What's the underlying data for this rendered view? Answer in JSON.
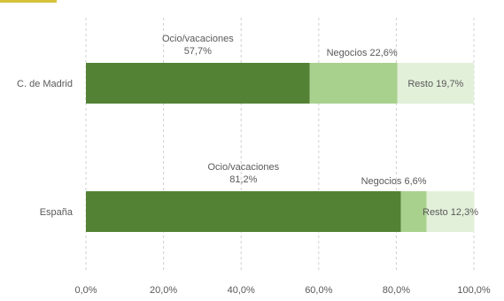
{
  "chart_data": {
    "type": "bar",
    "orientation": "horizontal",
    "stacked": true,
    "categories": [
      "C. de Madrid",
      "España"
    ],
    "series": [
      {
        "name": "Ocio/vacaciones",
        "values": [
          57.7,
          81.2
        ],
        "color": "#548235",
        "labels": [
          [
            "Ocio/vacaciones",
            "57,7%"
          ],
          [
            "Ocio/vacaciones",
            "81,2%"
          ]
        ]
      },
      {
        "name": "Negocios",
        "values": [
          22.6,
          6.6
        ],
        "color": "#a9d18e",
        "labels": [
          [
            "Negocios 22,6%"
          ],
          [
            "Negocios 6,6%"
          ]
        ]
      },
      {
        "name": "Resto",
        "values": [
          19.7,
          12.3
        ],
        "color": "#e2f0d9",
        "labels": [
          [
            "Resto 19,7%"
          ],
          [
            "Resto 12,3%"
          ]
        ]
      }
    ],
    "xlim": [
      0,
      100
    ],
    "xticks": [
      {
        "value": 0,
        "label": "0,0%"
      },
      {
        "value": 20,
        "label": "20,0%"
      },
      {
        "value": 40,
        "label": "40,0%"
      },
      {
        "value": 60,
        "label": "60,0%"
      },
      {
        "value": 80,
        "label": "80,0%"
      },
      {
        "value": 100,
        "label": "100,0%"
      }
    ],
    "grid": "vertical-dashed",
    "legend": "none",
    "title": "",
    "xlabel": "",
    "ylabel": ""
  }
}
